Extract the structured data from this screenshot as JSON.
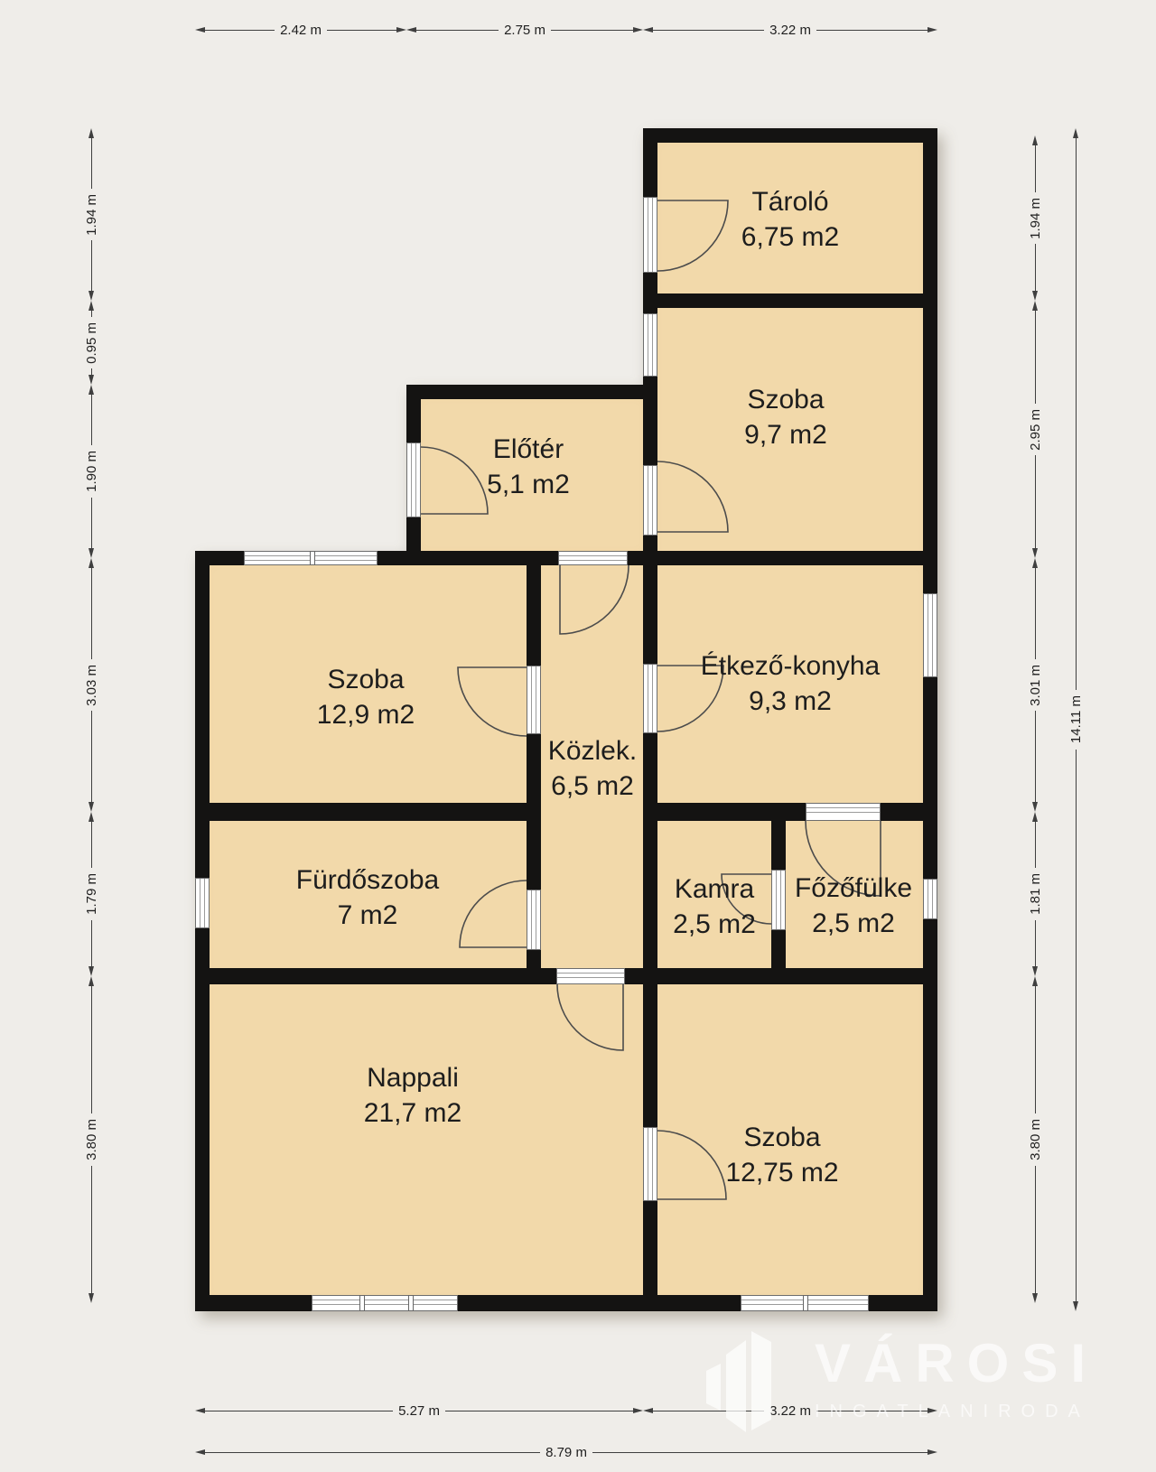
{
  "plan": {
    "wall_color": "#141312",
    "room_fill": "#f2d9aa",
    "background": "#efede9",
    "rooms": [
      {
        "id": "tarolo",
        "name": "Tároló",
        "area": "6,75 m2"
      },
      {
        "id": "szoba-97",
        "name": "Szoba",
        "area": "9,7 m2"
      },
      {
        "id": "eloter",
        "name": "Előtér",
        "area": "5,1 m2"
      },
      {
        "id": "szoba-129",
        "name": "Szoba",
        "area": "12,9 m2"
      },
      {
        "id": "etkezo-konyha",
        "name": "Étkező-konyha",
        "area": "9,3 m2"
      },
      {
        "id": "kozlek",
        "name": "Közlek.",
        "area": "6,5 m2"
      },
      {
        "id": "furdoszoba",
        "name": "Fürdőszoba",
        "area": "7 m2"
      },
      {
        "id": "kamra",
        "name": "Kamra",
        "area": "2,5 m2"
      },
      {
        "id": "fozofulke",
        "name": "Főzőfülke",
        "area": "2,5 m2"
      },
      {
        "id": "nappali",
        "name": "Nappali",
        "area": "21,7 m2"
      },
      {
        "id": "szoba-1275",
        "name": "Szoba",
        "area": "12,75 m2"
      }
    ],
    "dimensions": {
      "top": [
        "2.42 m",
        "2.75 m",
        "3.22 m"
      ],
      "left": [
        "1.94 m",
        "0.95 m",
        "1.90 m",
        "3.03 m",
        "1.79 m",
        "3.80 m"
      ],
      "right": [
        "1.94 m",
        "2.95 m",
        "3.01 m",
        "1.81 m",
        "3.80 m"
      ],
      "right_total": "14.11 m",
      "bottom": [
        "5.27 m",
        "3.22 m"
      ],
      "bottom_total": "8.79 m"
    }
  },
  "watermark": {
    "brand": "VÁROSI",
    "subtitle": "INGATLANIRODA"
  }
}
